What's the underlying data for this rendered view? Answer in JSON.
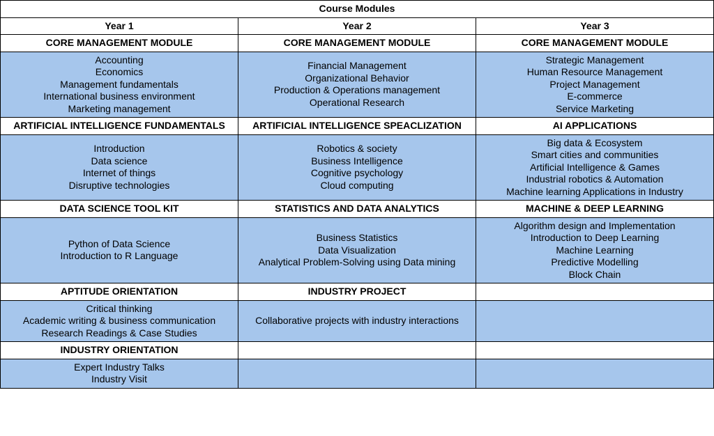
{
  "table": {
    "title": "Course Modules",
    "colors": {
      "row_bg": "#a6c6ec",
      "border": "#000000",
      "text": "#000000",
      "white": "#ffffff"
    },
    "column_headers": [
      "Year 1",
      "Year 2",
      "Year 3"
    ],
    "sections": [
      {
        "headers": [
          "CORE MANAGEMENT MODULE",
          "CORE MANAGEMENT MODULE",
          "CORE MANAGEMENT MODULE"
        ],
        "items": [
          [
            "Accounting",
            "Economics",
            "Management fundamentals",
            "International business environment",
            "Marketing management"
          ],
          [
            "Financial Management",
            "Organizational Behavior",
            "Production & Operations management",
            "Operational Research"
          ],
          [
            "Strategic Management",
            "Human Resource Management",
            "Project Management",
            "E-commerce",
            "Service Marketing"
          ]
        ]
      },
      {
        "headers": [
          "ARTIFICIAL INTELLIGENCE FUNDAMENTALS",
          "ARTIFICIAL INTELLIGENCE SPEACLIZATION",
          "AI APPLICATIONS"
        ],
        "items": [
          [
            "Introduction",
            "Data science",
            "Internet of things",
            "Disruptive technologies"
          ],
          [
            "Robotics & society",
            "Business Intelligence",
            "Cognitive psychology",
            "Cloud computing"
          ],
          [
            "Big data & Ecosystem",
            "Smart cities and communities",
            "Artificial Intelligence & Games",
            "Industrial robotics & Automation",
            "Machine learning Applications in Industry"
          ]
        ]
      },
      {
        "headers": [
          "DATA SCIENCE TOOL KIT",
          "STATISTICS AND DATA ANALYTICS",
          "MACHINE & DEEP LEARNING"
        ],
        "items": [
          [
            "Python of Data Science",
            "Introduction to R Language"
          ],
          [
            "Business Statistics",
            "Data Visualization",
            "Analytical Problem-Solving using Data mining"
          ],
          [
            "Algorithm design and Implementation",
            "Introduction to Deep Learning",
            "Machine Learning",
            "Predictive Modelling",
            "Block Chain"
          ]
        ]
      },
      {
        "headers": [
          "APTITUDE ORIENTATION",
          "INDUSTRY PROJECT",
          ""
        ],
        "items": [
          [
            "Critical thinking",
            "Academic writing & business communication",
            "Research Readings & Case Studies"
          ],
          [
            "Collaborative projects with industry interactions"
          ],
          []
        ]
      },
      {
        "headers": [
          "INDUSTRY ORIENTATION",
          "",
          ""
        ],
        "items": [
          [
            "Expert Industry Talks",
            "Industry Visit"
          ],
          [],
          []
        ]
      }
    ]
  }
}
